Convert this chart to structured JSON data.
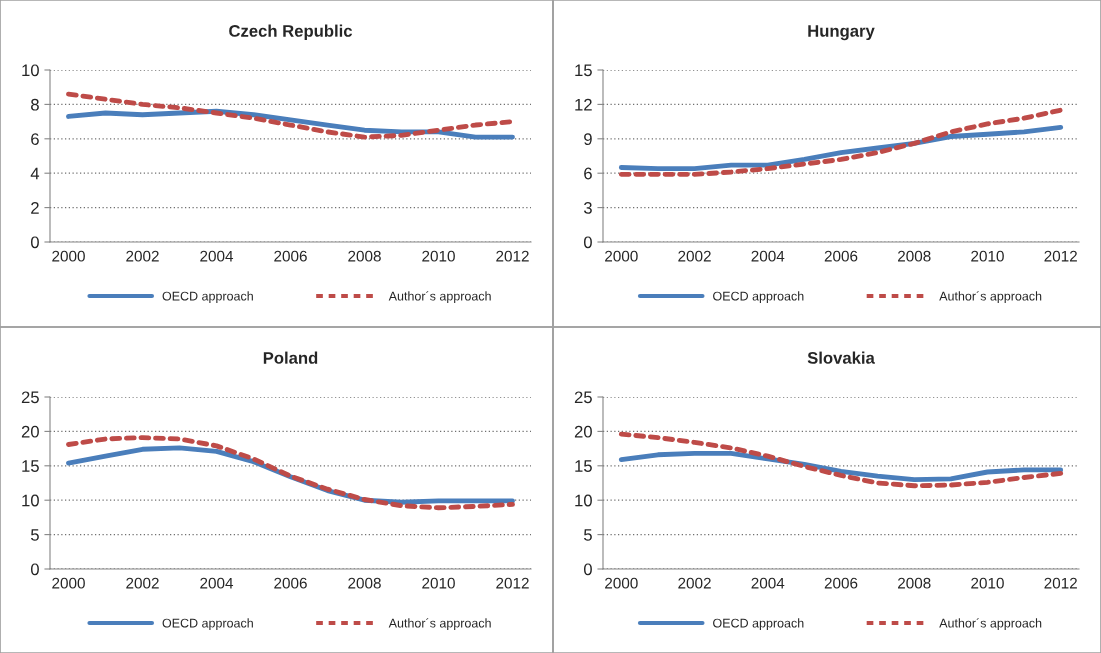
{
  "chart_data": [
    {
      "type": "line",
      "title": "Czech Republic",
      "categories": [
        "2000",
        null,
        "2002",
        null,
        "2004",
        null,
        "2006",
        null,
        "2008",
        null,
        "2010",
        null,
        "2012"
      ],
      "ylim": [
        0,
        10
      ],
      "yticks": [
        0,
        2,
        4,
        6,
        8,
        10
      ],
      "grid": "y",
      "legend": "bottom",
      "series": [
        {
          "name": "OECD approach",
          "color": "#4a7ebb",
          "line_style": "solid",
          "values": [
            7.3,
            7.5,
            7.4,
            7.5,
            7.6,
            7.4,
            7.1,
            6.8,
            6.5,
            6.4,
            6.4,
            6.1,
            6.1
          ]
        },
        {
          "name": "Author´s approach",
          "color": "#be4b48",
          "line_style": "dashed",
          "values": [
            8.6,
            8.3,
            8.0,
            7.8,
            7.5,
            7.2,
            6.8,
            6.4,
            6.1,
            6.2,
            6.5,
            6.8,
            7.0
          ]
        }
      ]
    },
    {
      "type": "line",
      "title": "Hungary",
      "categories": [
        "2000",
        null,
        "2002",
        null,
        "2004",
        null,
        "2006",
        null,
        "2008",
        null,
        "2010",
        null,
        "2012"
      ],
      "ylim": [
        0,
        15
      ],
      "yticks": [
        0,
        3,
        6,
        9,
        12,
        15
      ],
      "grid": "y",
      "legend": "bottom",
      "series": [
        {
          "name": "OECD approach",
          "color": "#4a7ebb",
          "line_style": "solid",
          "values": [
            6.5,
            6.4,
            6.4,
            6.7,
            6.7,
            7.2,
            7.8,
            8.2,
            8.6,
            9.2,
            9.4,
            9.6,
            10.0
          ]
        },
        {
          "name": "Author´s approach",
          "color": "#be4b48",
          "line_style": "dashed",
          "values": [
            5.9,
            5.9,
            5.9,
            6.1,
            6.4,
            6.8,
            7.2,
            7.8,
            8.6,
            9.6,
            10.3,
            10.8,
            11.5
          ]
        }
      ]
    },
    {
      "type": "line",
      "title": "Poland",
      "categories": [
        "2000",
        null,
        "2002",
        null,
        "2004",
        null,
        "2006",
        null,
        "2008",
        null,
        "2010",
        null,
        "2012"
      ],
      "ylim": [
        0,
        25
      ],
      "yticks": [
        0,
        5,
        10,
        15,
        20,
        25
      ],
      "grid": "y",
      "legend": "bottom",
      "series": [
        {
          "name": "OECD approach",
          "color": "#4a7ebb",
          "line_style": "solid",
          "values": [
            15.4,
            16.4,
            17.4,
            17.6,
            17.1,
            15.6,
            13.4,
            11.4,
            10.0,
            9.7,
            9.9,
            9.9,
            9.9
          ]
        },
        {
          "name": "Author´s approach",
          "color": "#be4b48",
          "line_style": "dashed",
          "values": [
            18.1,
            18.9,
            19.1,
            18.9,
            17.9,
            16.0,
            13.5,
            11.6,
            10.1,
            9.2,
            8.9,
            9.1,
            9.4
          ]
        }
      ]
    },
    {
      "type": "line",
      "title": "Slovakia",
      "categories": [
        "2000",
        null,
        "2002",
        null,
        "2004",
        null,
        "2006",
        null,
        "2008",
        null,
        "2010",
        null,
        "2012"
      ],
      "ylim": [
        0,
        25
      ],
      "yticks": [
        0,
        5,
        10,
        15,
        20,
        25
      ],
      "grid": "y",
      "legend": "bottom",
      "series": [
        {
          "name": "OECD approach",
          "color": "#4a7ebb",
          "line_style": "solid",
          "values": [
            15.9,
            16.6,
            16.8,
            16.8,
            16.0,
            15.2,
            14.2,
            13.5,
            13.0,
            13.1,
            14.1,
            14.4,
            14.4
          ]
        },
        {
          "name": "Author´s approach",
          "color": "#be4b48",
          "line_style": "dashed",
          "values": [
            19.6,
            19.1,
            18.4,
            17.6,
            16.4,
            14.9,
            13.6,
            12.5,
            12.1,
            12.2,
            12.6,
            13.3,
            13.9
          ]
        }
      ]
    }
  ]
}
